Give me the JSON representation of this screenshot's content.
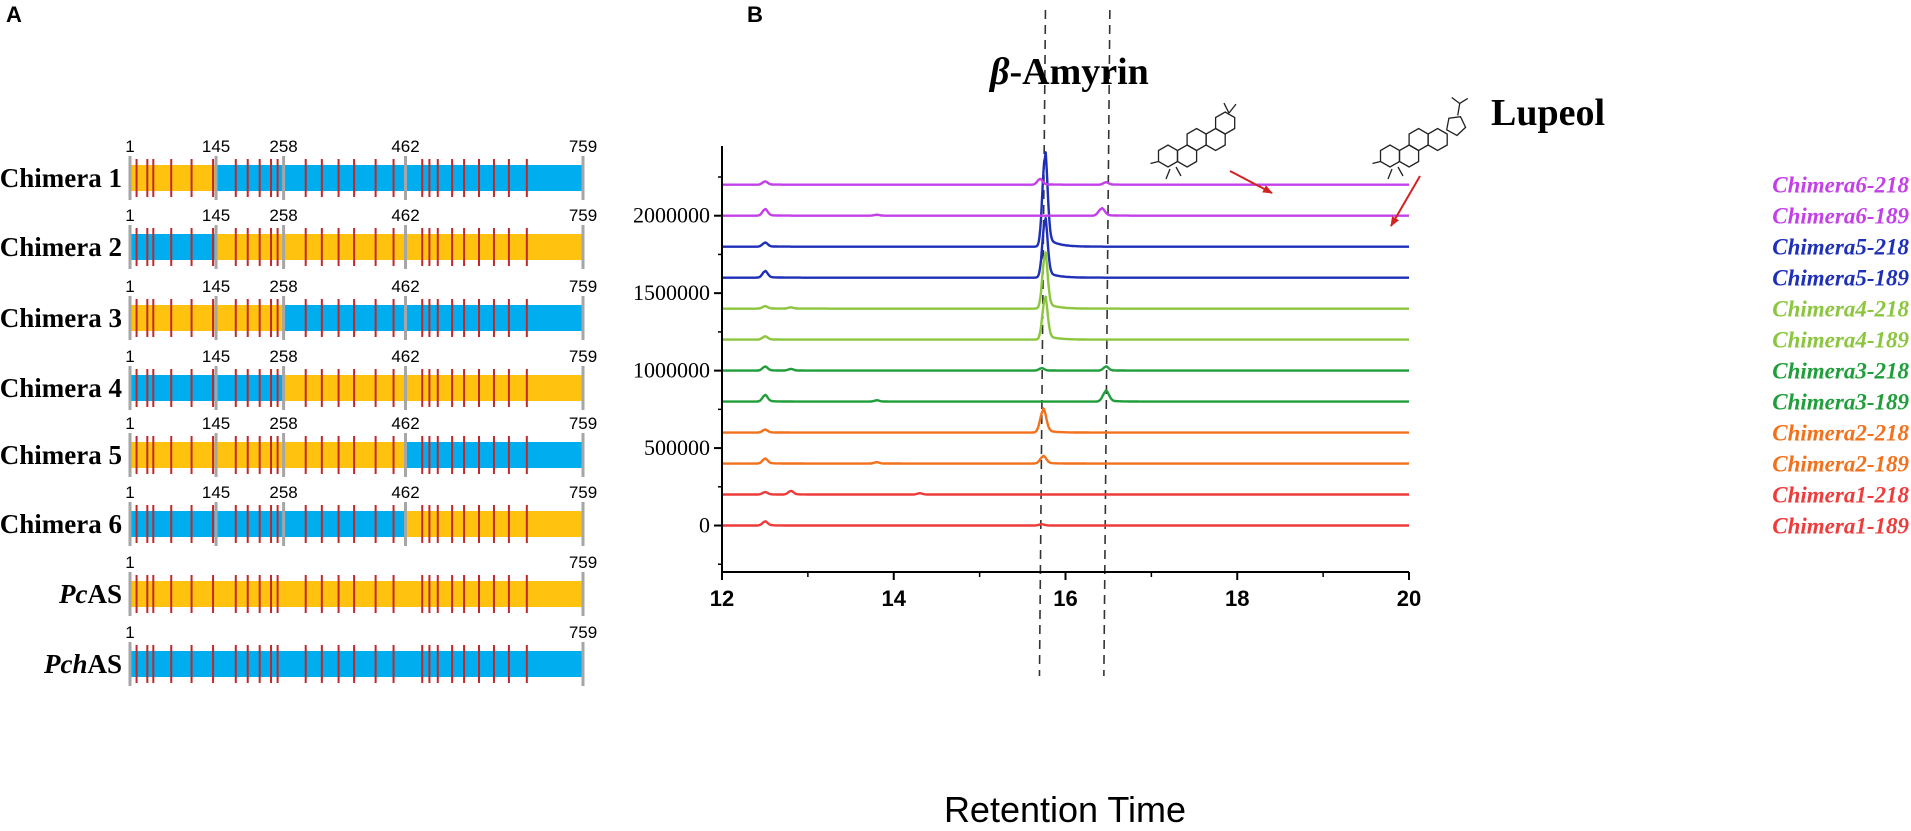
{
  "panels": {
    "a": {
      "letter": "A",
      "segment_colors": {
        "orange": "#FFC20E",
        "blue": "#00AEEF",
        "red_mark": "#C0282A",
        "boundary": "#A6A6A6"
      },
      "total_length": 759,
      "constructs": [
        {
          "name": "Chimera 1",
          "name_parts": [
            {
              "t": "Chimera 1",
              "i": false
            }
          ],
          "boundaries": [
            "1",
            "145",
            "258",
            "462",
            "759"
          ],
          "segments": [
            {
              "start": 1,
              "end": 145,
              "color": "orange"
            },
            {
              "start": 145,
              "end": 258,
              "color": "blue"
            },
            {
              "start": 258,
              "end": 462,
              "color": "blue"
            },
            {
              "start": 462,
              "end": 759,
              "color": "blue"
            }
          ]
        },
        {
          "name": "Chimera 2",
          "name_parts": [
            {
              "t": "Chimera 2",
              "i": false
            }
          ],
          "boundaries": [
            "1",
            "145",
            "258",
            "462",
            "759"
          ],
          "segments": [
            {
              "start": 1,
              "end": 145,
              "color": "blue"
            },
            {
              "start": 145,
              "end": 258,
              "color": "orange"
            },
            {
              "start": 258,
              "end": 462,
              "color": "orange"
            },
            {
              "start": 462,
              "end": 759,
              "color": "orange"
            }
          ]
        },
        {
          "name": "Chimera 3",
          "name_parts": [
            {
              "t": "Chimera 3",
              "i": false
            }
          ],
          "boundaries": [
            "1",
            "145",
            "258",
            "462",
            "759"
          ],
          "segments": [
            {
              "start": 1,
              "end": 145,
              "color": "orange"
            },
            {
              "start": 145,
              "end": 258,
              "color": "orange"
            },
            {
              "start": 258,
              "end": 462,
              "color": "blue"
            },
            {
              "start": 462,
              "end": 759,
              "color": "blue"
            }
          ]
        },
        {
          "name": "Chimera 4",
          "name_parts": [
            {
              "t": "Chimera 4",
              "i": false
            }
          ],
          "boundaries": [
            "1",
            "145",
            "258",
            "462",
            "759"
          ],
          "segments": [
            {
              "start": 1,
              "end": 145,
              "color": "blue"
            },
            {
              "start": 145,
              "end": 258,
              "color": "blue"
            },
            {
              "start": 258,
              "end": 462,
              "color": "orange"
            },
            {
              "start": 462,
              "end": 759,
              "color": "orange"
            }
          ]
        },
        {
          "name": "Chimera 5",
          "name_parts": [
            {
              "t": "Chimera 5",
              "i": false
            }
          ],
          "boundaries": [
            "1",
            "145",
            "258",
            "462",
            "759"
          ],
          "segments": [
            {
              "start": 1,
              "end": 145,
              "color": "orange"
            },
            {
              "start": 145,
              "end": 258,
              "color": "orange"
            },
            {
              "start": 258,
              "end": 462,
              "color": "orange"
            },
            {
              "start": 462,
              "end": 759,
              "color": "blue"
            }
          ]
        },
        {
          "name": "Chimera 6",
          "name_parts": [
            {
              "t": "Chimera 6",
              "i": false
            }
          ],
          "boundaries": [
            "1",
            "145",
            "258",
            "462",
            "759"
          ],
          "segments": [
            {
              "start": 1,
              "end": 145,
              "color": "blue"
            },
            {
              "start": 145,
              "end": 258,
              "color": "blue"
            },
            {
              "start": 258,
              "end": 462,
              "color": "blue"
            },
            {
              "start": 462,
              "end": 759,
              "color": "orange"
            }
          ]
        },
        {
          "name": "PcAS",
          "name_parts": [
            {
              "t": "Pc",
              "i": true
            },
            {
              "t": "AS",
              "i": false
            }
          ],
          "boundaries": [
            "1",
            "759"
          ],
          "segments": [
            {
              "start": 1,
              "end": 759,
              "color": "orange"
            }
          ]
        },
        {
          "name": "PchAS",
          "name_parts": [
            {
              "t": "Pch",
              "i": true
            },
            {
              "t": "AS",
              "i": false
            }
          ],
          "boundaries": [
            "1",
            "759"
          ],
          "segments": [
            {
              "start": 1,
              "end": 759,
              "color": "blue"
            }
          ]
        }
      ],
      "mutation_positions": [
        12,
        30,
        40,
        70,
        104,
        140,
        178,
        198,
        218,
        237,
        248,
        295,
        322,
        350,
        376,
        412,
        442,
        490,
        502,
        516,
        540,
        560,
        585,
        610,
        635,
        665
      ]
    },
    "b": {
      "letter": "B",
      "chart_data": {
        "type": "line",
        "xlabel": "Retention Time",
        "ylabel": "",
        "xlim": [
          12,
          20
        ],
        "ylim": [
          -300000,
          2450000
        ],
        "x_ticks": [
          "12",
          "14",
          "16",
          "18",
          "20"
        ],
        "y_ticks": [
          "0",
          "500000",
          "1000000",
          "1500000",
          "2000000"
        ],
        "reference_lines_x": [
          15.72,
          16.47
        ],
        "annotations": [
          {
            "text": "β-Amyrin",
            "x": 15.76
          },
          {
            "text": "Lupeol",
            "x": 16.47
          }
        ],
        "series": [
          {
            "name": "Chimera1-189",
            "color": "#EE3B3B",
            "baseline": 0,
            "peaks": [
              [
                12.5,
                25000,
                0.03
              ],
              [
                15.72,
                8000,
                0.03
              ]
            ]
          },
          {
            "name": "Chimera1-218",
            "color": "#EE3B3B",
            "baseline": 200000,
            "peaks": [
              [
                12.5,
                15000,
                0.03
              ],
              [
                12.8,
                22000,
                0.03
              ],
              [
                14.3,
                8000,
                0.03
              ]
            ]
          },
          {
            "name": "Chimera2-189",
            "color": "#F2711C",
            "baseline": 400000,
            "peaks": [
              [
                12.5,
                30000,
                0.03
              ],
              [
                13.8,
                8000,
                0.03
              ],
              [
                15.74,
                45000,
                0.035
              ]
            ]
          },
          {
            "name": "Chimera2-218",
            "color": "#F2711C",
            "baseline": 600000,
            "peaks": [
              [
                12.5,
                18000,
                0.03
              ],
              [
                15.74,
                140000,
                0.035
              ]
            ]
          },
          {
            "name": "Chimera3-189",
            "color": "#1F9E3A",
            "baseline": 800000,
            "peaks": [
              [
                12.5,
                40000,
                0.03
              ],
              [
                13.8,
                8000,
                0.03
              ],
              [
                16.47,
                65000,
                0.035
              ]
            ]
          },
          {
            "name": "Chimera3-218",
            "color": "#1F9E3A",
            "baseline": 1000000,
            "peaks": [
              [
                12.5,
                25000,
                0.03
              ],
              [
                12.8,
                10000,
                0.03
              ],
              [
                15.72,
                15000,
                0.03
              ],
              [
                16.47,
                25000,
                0.03
              ]
            ]
          },
          {
            "name": "Chimera4-189",
            "color": "#8CC63F",
            "baseline": 1200000,
            "peaks": [
              [
                12.5,
                20000,
                0.03
              ],
              [
                15.76,
                260000,
                0.03
              ]
            ]
          },
          {
            "name": "Chimera4-218",
            "color": "#8CC63F",
            "baseline": 1400000,
            "peaks": [
              [
                12.5,
                15000,
                0.03
              ],
              [
                12.8,
                8000,
                0.03
              ],
              [
                15.76,
                340000,
                0.03
              ]
            ]
          },
          {
            "name": "Chimera5-189",
            "color": "#1E2FB8",
            "baseline": 1600000,
            "peaks": [
              [
                12.5,
                40000,
                0.03
              ],
              [
                15.76,
                360000,
                0.03
              ]
            ]
          },
          {
            "name": "Chimera5-218",
            "color": "#1E2FB8",
            "baseline": 1800000,
            "peaks": [
              [
                12.5,
                25000,
                0.03
              ],
              [
                15.76,
                570000,
                0.03
              ]
            ]
          },
          {
            "name": "Chimera6-189",
            "color": "#C340E8",
            "baseline": 2000000,
            "peaks": [
              [
                12.5,
                40000,
                0.03
              ],
              [
                13.8,
                6000,
                0.03
              ],
              [
                16.42,
                45000,
                0.035
              ]
            ]
          },
          {
            "name": "Chimera6-218",
            "color": "#C340E8",
            "baseline": 2200000,
            "peaks": [
              [
                12.5,
                20000,
                0.03
              ],
              [
                15.7,
                35000,
                0.03
              ],
              [
                16.47,
                15000,
                0.03
              ]
            ]
          }
        ]
      }
    }
  }
}
